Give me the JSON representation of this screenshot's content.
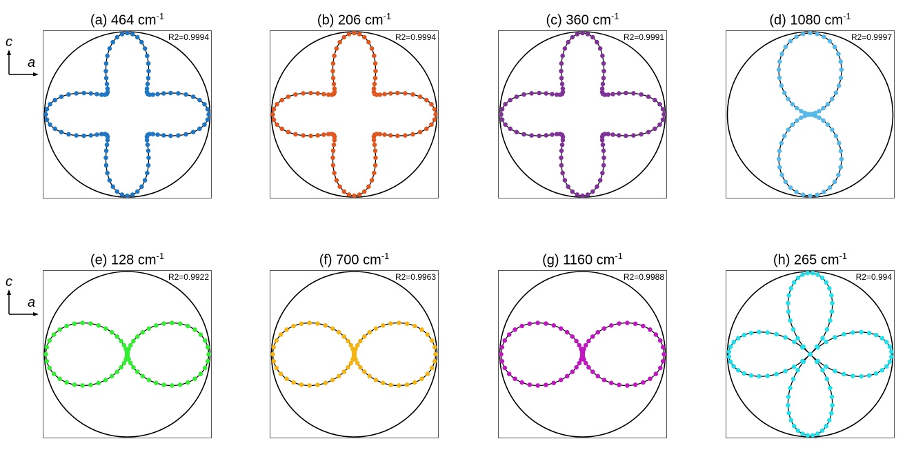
{
  "chart_data": [
    {
      "type": "polar-scatter",
      "label": "(a) 464 cm",
      "unit_sup": "-1",
      "annotation": "R2=0.9994",
      "color": "#1f77c4",
      "shape": "cross4",
      "orientation_degrees": 0
    },
    {
      "type": "polar-scatter",
      "label": "(b) 206 cm",
      "unit_sup": "-1",
      "annotation": "R2=0.9994",
      "color": "#e0581f",
      "shape": "cross4",
      "orientation_degrees": 0
    },
    {
      "type": "polar-scatter",
      "label": "(c) 360 cm",
      "unit_sup": "-1",
      "annotation": "R2=0.9991",
      "color": "#7f3397",
      "shape": "cross4",
      "orientation_degrees": 0
    },
    {
      "type": "polar-scatter",
      "label": "(d) 1080 cm",
      "unit_sup": "-1",
      "annotation": "R2=0.9997",
      "color": "#58b9e8",
      "shape": "two-lobe",
      "orientation_degrees": 90
    },
    {
      "type": "polar-scatter",
      "label": "(e) 128 cm",
      "unit_sup": "-1",
      "annotation": "R2=0.9922",
      "color": "#33ee33",
      "shape": "two-lobe",
      "orientation_degrees": 0
    },
    {
      "type": "polar-scatter",
      "label": "(f) 700 cm",
      "unit_sup": "-1",
      "annotation": "R2=0.9963",
      "color": "#f4b414",
      "shape": "two-lobe",
      "orientation_degrees": 0
    },
    {
      "type": "polar-scatter",
      "label": "(g) 1160 cm",
      "unit_sup": "-1",
      "annotation": "R2=0.9988",
      "color": "#bf18bf",
      "shape": "two-lobe",
      "orientation_degrees": 0
    },
    {
      "type": "polar-scatter",
      "label": "(h) 265 cm",
      "unit_sup": "-1",
      "annotation": "R2=0.994",
      "color": "#21e0ea",
      "shape": "four-lobe",
      "orientation_degrees": 45
    }
  ],
  "axis_indicator": {
    "vertical": "c",
    "horizontal": "a"
  }
}
